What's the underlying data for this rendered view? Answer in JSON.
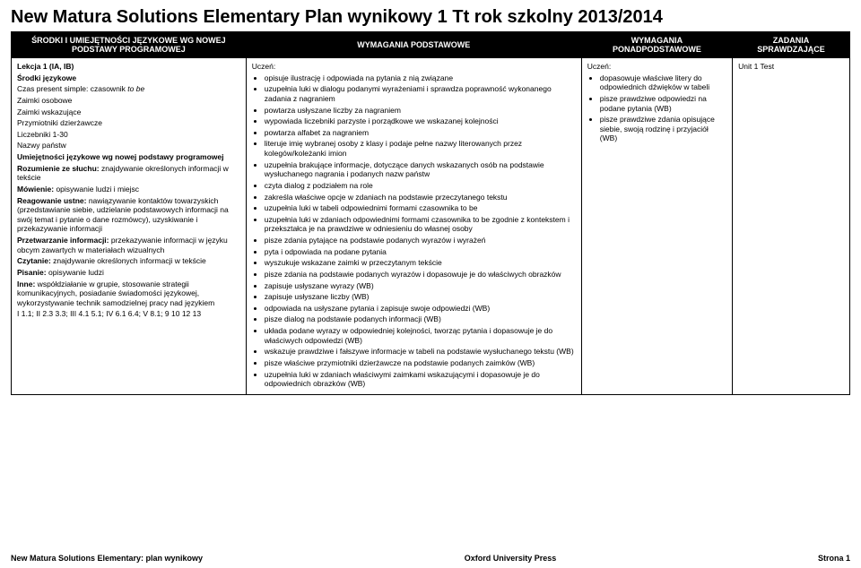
{
  "title": "New Matura Solutions Elementary Plan wynikowy 1 Tt rok szkolny 2013/2014",
  "headers": {
    "c1": "ŚRODKI I UMIEJĘTNOŚCI JĘZYKOWE WG NOWEJ PODSTAWY PROGRAMOWEJ",
    "c2": "WYMAGANIA PODSTAWOWE",
    "c3": "WYMAGANIA PONADPODSTAWOWE",
    "c4": "ZADANIA SPRAWDZAJĄCE"
  },
  "row": {
    "col1": {
      "lekcja": "Lekcja 1 (IA, IB)",
      "srodki_h": "Środki językowe",
      "l1a": "Czas present simple: czasownik ",
      "l1b": "to be",
      "l2": "Zaimki osobowe",
      "l3": "Zaimki wskazujące",
      "l4": "Przymiotniki dzierżawcze",
      "l5": "Liczebniki 1-30",
      "l6": "Nazwy państw",
      "um_h": "Umiejętności językowe wg nowej podstawy programowej",
      "u1a": "Rozumienie ze słuchu:",
      "u1b": " znajdywanie określonych informacji w tekście",
      "u2a": "Mówienie:",
      "u2b": " opisywanie ludzi i miejsc",
      "u3a": "Reagowanie ustne:",
      "u3b": " nawiązywanie kontaktów towarzyskich (przedstawianie siebie, udzielanie podstawowych informacji na swój temat i pytanie o dane rozmówcy), uzyskiwanie i przekazywanie informacji",
      "u4a": "Przetwarzanie informacji:",
      "u4b": " przekazywanie informacji w języku obcym zawartych w materiałach wizualnych",
      "u5a": "Czytanie:",
      "u5b": " znajdywanie określonych informacji w tekście",
      "u6a": "Pisanie:",
      "u6b": " opisywanie ludzi",
      "u7a": "Inne:",
      "u7b": " współdziałanie w grupie, stosowanie strategii komunikacyjnych, posiadanie świadomości językowej, wykorzystywanie technik samodzielnej pracy nad językiem",
      "codes": "I 1.1; II 2.3 3.3; III 4.1 5.1; IV 6.1 6.4; V 8.1; 9 10 12 13"
    },
    "col2": {
      "lead": "Uczeń:",
      "items": [
        "opisuje ilustrację i odpowiada na pytania z nią związane",
        "uzupełnia luki w dialogu podanymi wyrażeniami i sprawdza poprawność wykonanego zadania z nagraniem",
        "powtarza usłyszane liczby za nagraniem",
        "wypowiada liczebniki parzyste i porządkowe we wskazanej kolejności",
        "powtarza alfabet za nagraniem",
        "literuje imię wybranej osoby z klasy i podaje pełne nazwy literowanych przez kolegów/koleżanki imion",
        "uzupełnia brakujące informacje, dotyczące danych wskazanych osób na podstawie wysłuchanego nagrania i podanych nazw państw",
        "czyta dialog z podziałem na role",
        "zakreśla właściwe opcje w zdaniach na podstawie przeczytanego tekstu",
        "uzupełnia luki w tabeli odpowiednimi formami czasownika to be",
        "uzupełnia luki w zdaniach odpowiednimi formami czasownika to be zgodnie z kontekstem i przekształca je na prawdziwe w odniesieniu do własnej osoby",
        "pisze zdania pytające na podstawie podanych wyrazów i wyrażeń",
        "pyta i odpowiada na podane pytania",
        "wyszukuje wskazane zaimki w przeczytanym tekście",
        "pisze zdania na podstawie podanych wyrazów i dopasowuje je do właściwych obrazków",
        "zapisuje usłyszane wyrazy (WB)",
        "zapisuje usłyszane liczby (WB)",
        "odpowiada na usłyszane pytania i zapisuje swoje odpowiedzi (WB)",
        "pisze dialog na podstawie podanych informacji (WB)",
        "układa podane wyrazy w odpowiedniej kolejności, tworząc pytania i dopasowuje je do właściwych odpowiedzi (WB)",
        "wskazuje prawdziwe i fałszywe informacje w tabeli na podstawie wysłuchanego tekstu (WB)",
        "pisze właściwe przymiotniki dzierżawcze na podstawie podanych zaimków (WB)",
        "uzupełnia luki w zdaniach właściwymi zaimkami wskazującymi i dopasowuje je do odpowiednich obrazków (WB)"
      ]
    },
    "col3": {
      "lead": "Uczeń:",
      "items": [
        "dopasowuje właściwe litery do odpowiednich dźwięków w tabeli",
        "pisze prawdziwe odpowiedzi na podane pytania (WB)",
        "pisze prawdziwe zdania opisujące siebie, swoją rodzinę i przyjaciół (WB)"
      ]
    },
    "col4": {
      "task": "Unit 1 Test"
    }
  },
  "footer": {
    "left": "New Matura Solutions Elementary: plan wynikowy",
    "center": "Oxford University Press",
    "right": "Strona 1"
  }
}
